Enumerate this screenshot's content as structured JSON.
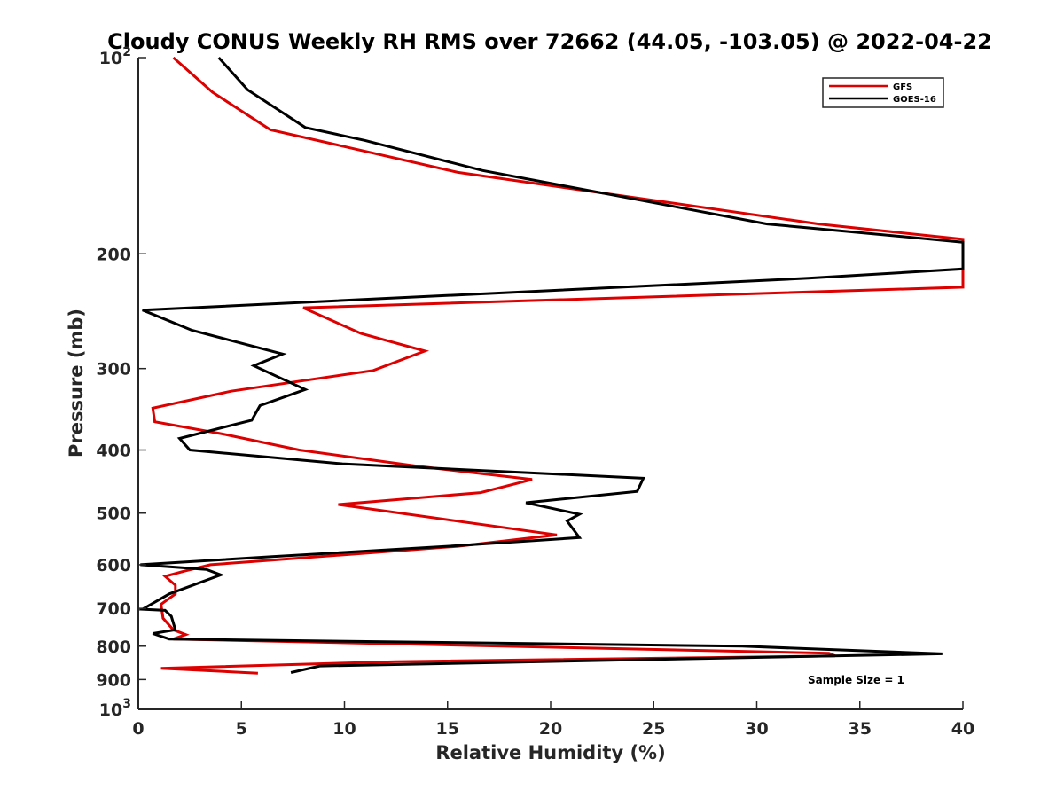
{
  "chart_data": {
    "type": "line",
    "title": "Cloudy CONUS Weekly RH RMS over 72662 (44.05, -103.05) @ 2022-04-22",
    "xlabel": "Relative Humidity (%)",
    "ylabel": "Pressure (mb)",
    "xlim": [
      0,
      40
    ],
    "ylim": [
      100,
      1000
    ],
    "y_scale": "log",
    "y_reversed": true,
    "grid": false,
    "x_ticks": [
      "0",
      "5",
      "10",
      "15",
      "20",
      "25",
      "30",
      "35",
      "40"
    ],
    "y_ticks": [
      {
        "value": 100,
        "base": "10",
        "exp": "2"
      },
      {
        "value": 200,
        "label": "200"
      },
      {
        "value": 300,
        "label": "300"
      },
      {
        "value": 400,
        "label": "400"
      },
      {
        "value": 500,
        "label": "500"
      },
      {
        "value": 600,
        "label": "600"
      },
      {
        "value": 700,
        "label": "700"
      },
      {
        "value": 800,
        "label": "800"
      },
      {
        "value": 900,
        "label": "900"
      },
      {
        "value": 1000,
        "base": "10",
        "exp": "3"
      }
    ],
    "legend": {
      "position": "top-right",
      "entries": [
        "GFS",
        "GOES-16"
      ]
    },
    "annotation": "Sample Size = 1",
    "series": [
      {
        "name": "GFS",
        "color": "#dd0000",
        "points": [
          [
            1.7,
            100
          ],
          [
            3.6,
            113
          ],
          [
            6.4,
            129
          ],
          [
            15.5,
            150
          ],
          [
            33,
            180
          ],
          [
            40,
            190
          ],
          [
            40,
            225
          ],
          [
            8,
            242
          ],
          [
            10.8,
            265
          ],
          [
            13.9,
            282
          ],
          [
            11.4,
            302
          ],
          [
            4.5,
            325
          ],
          [
            0.7,
            345
          ],
          [
            0.8,
            362
          ],
          [
            4.1,
            378
          ],
          [
            7.8,
            400
          ],
          [
            13.4,
            423
          ],
          [
            19.1,
            444
          ],
          [
            16.6,
            465
          ],
          [
            9.7,
            485
          ],
          [
            20.3,
            540
          ],
          [
            15.5,
            562
          ],
          [
            3.5,
            600
          ],
          [
            2.2,
            614
          ],
          [
            1.3,
            625
          ],
          [
            1.8,
            645
          ],
          [
            1.8,
            665
          ],
          [
            1.1,
            690
          ],
          [
            1.2,
            725
          ],
          [
            1.7,
            755
          ],
          [
            2.3,
            768
          ],
          [
            1.7,
            780
          ],
          [
            33.5,
            820
          ],
          [
            33.8,
            828
          ],
          [
            12.5,
            845
          ],
          [
            1.1,
            865
          ],
          [
            5.8,
            880
          ]
        ]
      },
      {
        "name": "GOES-16",
        "color": "#000000",
        "points": [
          [
            3.9,
            100
          ],
          [
            5.3,
            112
          ],
          [
            8.1,
            128
          ],
          [
            11,
            134
          ],
          [
            16.7,
            149
          ],
          [
            30.5,
            180
          ],
          [
            40,
            192
          ],
          [
            40,
            211
          ],
          [
            32.5,
            218
          ],
          [
            0.2,
            244
          ],
          [
            2.6,
            262
          ],
          [
            7,
            285
          ],
          [
            5.6,
            297
          ],
          [
            8.1,
            323
          ],
          [
            5.9,
            342
          ],
          [
            5.5,
            360
          ],
          [
            2,
            384
          ],
          [
            2.5,
            400
          ],
          [
            9.9,
            420
          ],
          [
            24.5,
            442
          ],
          [
            24.2,
            463
          ],
          [
            18.8,
            482
          ],
          [
            21.4,
            502
          ],
          [
            20.8,
            514
          ],
          [
            21.4,
            545
          ],
          [
            15,
            562
          ],
          [
            6.5,
            583
          ],
          [
            0.1,
            600
          ],
          [
            3.3,
            610
          ],
          [
            4,
            622
          ],
          [
            1.5,
            665
          ],
          [
            0.2,
            702
          ],
          [
            1.3,
            705
          ],
          [
            1.6,
            720
          ],
          [
            1.8,
            755
          ],
          [
            0.7,
            765
          ],
          [
            1.5,
            780
          ],
          [
            29.3,
            800
          ],
          [
            39,
            822
          ],
          [
            8.8,
            858
          ],
          [
            7.4,
            878
          ]
        ]
      }
    ]
  }
}
